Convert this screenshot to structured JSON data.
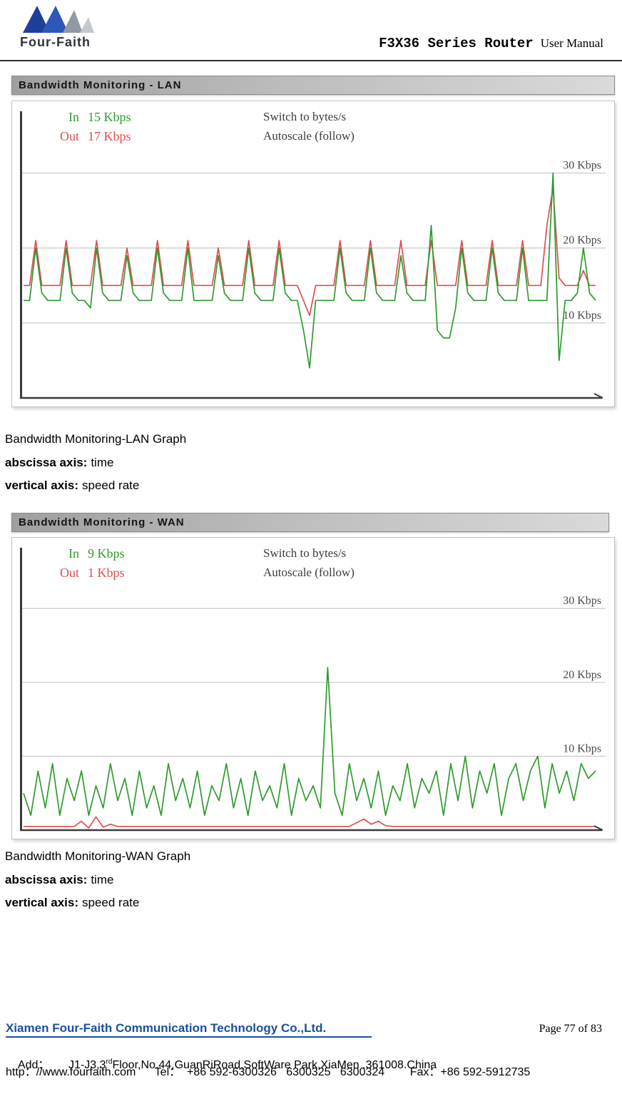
{
  "header": {
    "logo_text": "Four-Faith",
    "doc_title": "F3X36 Series Router",
    "doc_subtitle": "User Manual"
  },
  "sections": {
    "lan": {
      "bar_title": "Bandwidth Monitoring - LAN",
      "caption": "Bandwidth Monitoring-LAN Graph"
    },
    "wan": {
      "bar_title": "Bandwidth Monitoring - WAN",
      "caption": "Bandwidth Monitoring-WAN Graph"
    }
  },
  "axis_notes": {
    "abscissa_label": "abscissa axis:",
    "abscissa_value": "time",
    "vertical_label": "vertical axis:",
    "vertical_value": "speed rate"
  },
  "colors": {
    "in_green": "#2e9b2e",
    "out_red": "#dd4f4f",
    "link_gray": "#3c3c3c",
    "grid_label": "#4a4a4a",
    "hyperlink_blue": "#1c4fa0"
  },
  "chart_data": [
    {
      "id": "lan",
      "type": "line",
      "title": "Bandwidth Monitoring - LAN",
      "xlabel": "time",
      "ylabel": "speed rate",
      "ylim": [
        0,
        39
      ],
      "yunit": "Kbps",
      "gridlines": [
        10,
        20,
        30
      ],
      "grid_label_suffix": " Kbps",
      "legend_links": {
        "switch": "Switch to bytes/s",
        "autoscale": "Autoscale (follow)"
      },
      "series": [
        {
          "name": "In",
          "current": "15 Kbps",
          "color": "#2e9b2e",
          "values": [
            13,
            13,
            20,
            14,
            13,
            13,
            13,
            20,
            14,
            13,
            13,
            12,
            20,
            14,
            13,
            13,
            13,
            19,
            14,
            13,
            13,
            13,
            20,
            14,
            13,
            13,
            13,
            20,
            13,
            13,
            13,
            13,
            19,
            14,
            13,
            13,
            13,
            20,
            14,
            13,
            13,
            13,
            20,
            14,
            13,
            13,
            9,
            4,
            13,
            13,
            13,
            13,
            20,
            14,
            13,
            13,
            13,
            20,
            14,
            13,
            13,
            13,
            19,
            14,
            13,
            13,
            13,
            23,
            9,
            8,
            8,
            12,
            20,
            14,
            13,
            13,
            13,
            20,
            14,
            13,
            13,
            13,
            20,
            13,
            13,
            13,
            13,
            30,
            5,
            13,
            13,
            14,
            20,
            14,
            13
          ]
        },
        {
          "name": "Out",
          "current": "17 Kbps",
          "color": "#dd4f4f",
          "values": [
            15,
            15,
            21,
            15,
            15,
            15,
            15,
            21,
            15,
            15,
            15,
            15,
            21,
            15,
            15,
            15,
            15,
            20,
            15,
            15,
            15,
            15,
            21,
            15,
            15,
            15,
            15,
            21,
            15,
            15,
            15,
            15,
            20,
            15,
            15,
            15,
            15,
            21,
            15,
            15,
            15,
            15,
            21,
            15,
            15,
            15,
            13,
            11,
            15,
            15,
            15,
            15,
            21,
            15,
            15,
            15,
            15,
            21,
            15,
            15,
            15,
            15,
            21,
            15,
            15,
            15,
            15,
            21,
            15,
            15,
            15,
            15,
            21,
            15,
            15,
            15,
            15,
            21,
            15,
            15,
            15,
            15,
            21,
            15,
            15,
            15,
            23,
            28,
            16,
            15,
            15,
            15,
            17,
            15,
            15
          ]
        }
      ]
    },
    {
      "id": "wan",
      "type": "line",
      "title": "Bandwidth Monitoring - WAN",
      "xlabel": "time",
      "ylabel": "speed rate",
      "ylim": [
        0,
        39
      ],
      "yunit": "Kbps",
      "gridlines": [
        10,
        20,
        30
      ],
      "grid_label_suffix": " Kbps",
      "legend_links": {
        "switch": "Switch to bytes/s",
        "autoscale": "Autoscale (follow)"
      },
      "series": [
        {
          "name": "In",
          "current": "9 Kbps",
          "color": "#2e9b2e",
          "values": [
            5,
            2,
            8,
            3,
            9,
            2,
            7,
            4,
            8,
            2,
            6,
            3,
            9,
            4,
            7,
            2,
            8,
            3,
            6,
            2,
            9,
            4,
            7,
            3,
            8,
            2,
            6,
            4,
            9,
            3,
            7,
            2,
            8,
            4,
            6,
            3,
            9,
            2,
            7,
            4,
            6,
            3,
            22,
            5,
            2,
            9,
            4,
            7,
            3,
            8,
            2,
            6,
            4,
            9,
            3,
            7,
            5,
            8,
            2,
            9,
            4,
            10,
            3,
            8,
            5,
            9,
            2,
            7,
            9,
            4,
            8,
            10,
            3,
            9,
            5,
            8,
            4,
            9,
            7,
            8
          ]
        },
        {
          "name": "Out",
          "current": "1 Kbps",
          "color": "#dd4f4f",
          "values": [
            0.5,
            0.5,
            0.5,
            0.5,
            0.5,
            0.5,
            0.5,
            0.5,
            1.2,
            0.3,
            1.8,
            0.4,
            0.8,
            0.5,
            0.5,
            0.5,
            0.5,
            0.5,
            0.5,
            0.5,
            0.5,
            0.5,
            0.5,
            0.5,
            0.5,
            0.5,
            0.5,
            0.5,
            0.5,
            0.5,
            0.5,
            0.5,
            0.5,
            0.5,
            0.5,
            0.5,
            0.5,
            0.5,
            0.5,
            0.5,
            0.5,
            0.5,
            0.5,
            0.5,
            0.5,
            0.5,
            1.0,
            1.5,
            0.8,
            1.2,
            0.6,
            0.5,
            0.5,
            0.5,
            0.5,
            0.5,
            0.5,
            0.5,
            0.5,
            0.5,
            0.5,
            0.5,
            0.5,
            0.5,
            0.5,
            0.5,
            0.5,
            0.5,
            0.5,
            0.5,
            0.5,
            0.5,
            0.5,
            0.5,
            0.5,
            0.5,
            0.5,
            0.5,
            0.5,
            0.5
          ]
        }
      ]
    }
  ],
  "footer": {
    "company": "Xiamen Four-Faith Communication Technology Co.,Ltd.",
    "page_info": "Page 77 of 83",
    "address_prefix": "Add：      J1-J3,3",
    "address_sup": "rd",
    "address_suffix": "Floor,No.44,GuanRiRoad,SoftWare Park,XiaMen .361008.China",
    "contact": "http：//www.fourfaith.com      Tel：  +86 592-6300326   6300325   6300324        Fax：+86 592-5912735"
  }
}
